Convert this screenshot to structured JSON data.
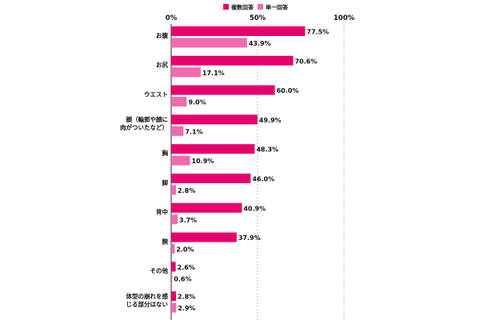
{
  "chart_data": {
    "type": "bar",
    "orientation": "horizontal",
    "categories": [
      [
        "お腹"
      ],
      [
        "お尻"
      ],
      [
        "ウエスト"
      ],
      [
        "顔（輪郭や顔に",
        "肉がついたなど）"
      ],
      [
        "胸"
      ],
      [
        "脚"
      ],
      [
        "背中"
      ],
      [
        "腕"
      ],
      [
        "その他"
      ],
      [
        "体型の崩れを感",
        "じる部分はない"
      ]
    ],
    "series": [
      {
        "name": "複数回答",
        "color": "#e6006e",
        "values": [
          77.5,
          70.6,
          60.0,
          49.9,
          48.3,
          46.0,
          40.9,
          37.9,
          2.6,
          2.8
        ],
        "labels": [
          "77.5%",
          "70.6%",
          "60.0%",
          "49.9%",
          "48.3%",
          "46.0%",
          "40.9%",
          "37.9%",
          "2.6%",
          "2.8%"
        ]
      },
      {
        "name": "単一回答",
        "color": "#f06aae",
        "values": [
          43.9,
          17.1,
          9.0,
          7.1,
          10.9,
          2.8,
          3.7,
          2.0,
          0.6,
          2.9
        ],
        "labels": [
          "43.9%",
          "17.1%",
          "9.0%",
          "7.1%",
          "10.9%",
          "2.8%",
          "3.7%",
          "2.0%",
          "0.6%",
          "2.9%"
        ]
      }
    ],
    "xlim": [
      0,
      100
    ],
    "ticks": [
      0,
      50,
      100
    ],
    "tick_labels": [
      "0%",
      "50%",
      "100%"
    ],
    "grid": "dashed vertical at 50% and 100%",
    "legend_position": "top-center"
  }
}
